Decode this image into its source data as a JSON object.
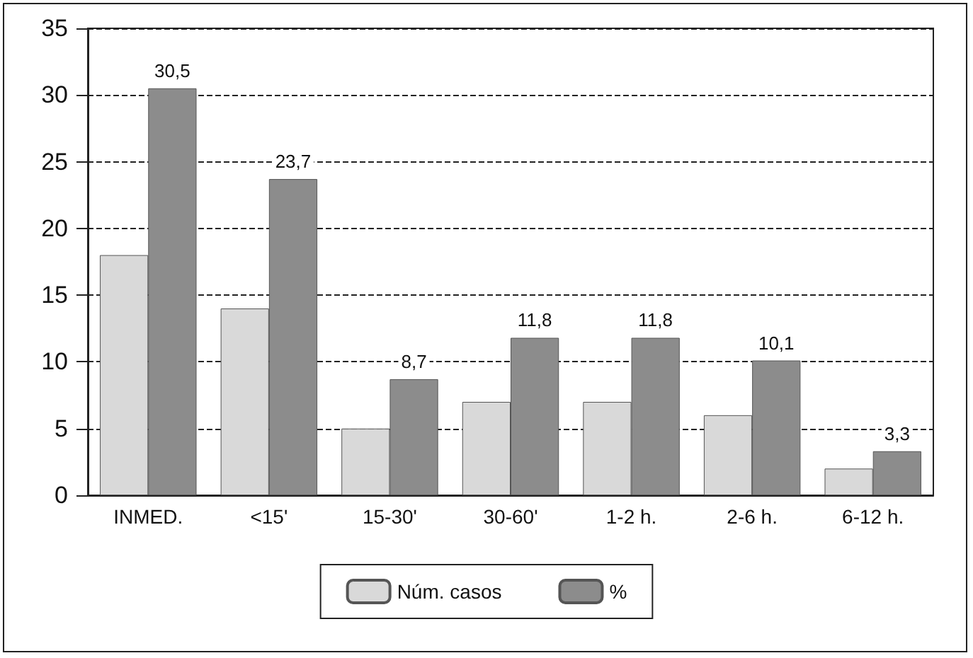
{
  "chart_data": {
    "type": "bar",
    "categories": [
      "INMED.",
      "<15'",
      "15-30'",
      "30-60'",
      "1-2 h.",
      "2-6 h.",
      "6-12 h."
    ],
    "series": [
      {
        "name": "Núm. casos",
        "color": "#d9d9d9",
        "values": [
          18,
          14,
          5,
          7,
          7,
          6,
          2
        ]
      },
      {
        "name": "%",
        "color": "#8c8c8c",
        "values": [
          30.5,
          23.7,
          8.7,
          11.8,
          11.8,
          10.1,
          3.3
        ],
        "value_labels": [
          "30,5",
          "23,7",
          "8,7",
          "11,8",
          "11,8",
          "10,1",
          "3,3"
        ]
      }
    ],
    "ylim": [
      0,
      35
    ],
    "yticks": [
      0,
      5,
      10,
      15,
      20,
      25,
      30,
      35
    ],
    "grid": "y",
    "legend": "bottom"
  }
}
